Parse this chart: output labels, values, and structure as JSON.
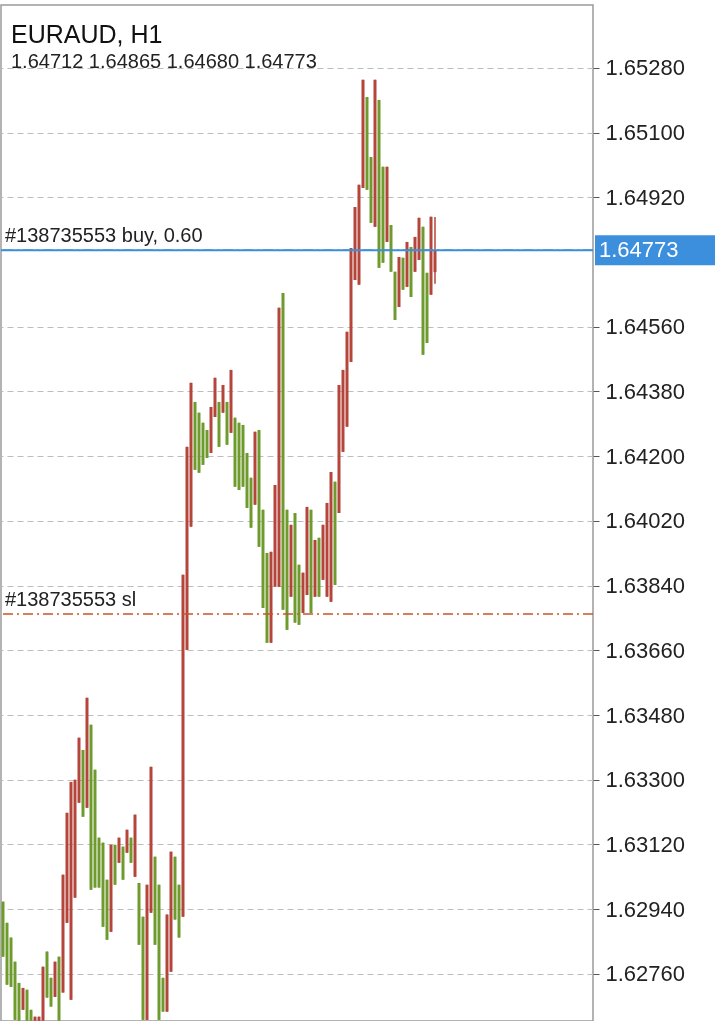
{
  "chart_data": {
    "type": "candlestick",
    "title": "EURAUD, H1",
    "subtitle": "1.64712 1.64865 1.64680 1.64773",
    "categories": [
      null,
      null,
      null,
      null,
      null,
      null,
      null,
      null,
      null,
      null,
      null,
      null,
      null,
      null,
      null,
      null,
      null,
      null,
      null,
      null,
      null,
      null,
      null,
      null,
      null,
      null,
      null,
      null,
      null,
      null,
      null,
      null,
      null,
      null,
      null,
      null,
      null,
      null,
      null,
      null,
      null,
      null,
      null,
      null,
      null,
      null,
      null,
      null,
      null,
      null,
      null,
      null,
      null,
      null,
      null,
      null,
      null,
      null,
      null,
      null,
      null,
      null,
      null,
      null,
      null,
      null,
      null,
      null,
      null,
      null,
      null,
      null,
      null,
      null,
      null,
      null,
      null,
      null,
      null,
      null,
      null,
      null,
      null,
      null,
      null,
      null,
      null,
      null,
      null,
      null,
      null,
      null,
      null,
      null,
      null,
      null,
      null,
      null,
      null,
      null,
      null,
      null,
      null,
      null,
      null,
      null,
      null,
      null,
      null,
      null,
      null,
      null,
      null,
      null,
      null,
      null,
      null,
      null,
      null,
      null,
      null,
      null,
      null,
      null,
      null,
      null,
      null,
      null,
      null,
      null,
      null,
      null,
      null,
      null,
      null,
      null,
      null,
      null,
      null,
      null,
      null,
      null,
      null,
      null,
      null,
      null,
      null,
      null
    ],
    "ylim": [
      1.62629,
      1.65455
    ],
    "yticks": [
      {
        "value": 1.6528,
        "label": "1.65280"
      },
      {
        "value": 1.651,
        "label": "1.65100"
      },
      {
        "value": 1.6492,
        "label": "1.64920"
      },
      {
        "value": 1.6456,
        "label": "1.64560"
      },
      {
        "value": 1.6438,
        "label": "1.64380"
      },
      {
        "value": 1.642,
        "label": "1.64200"
      },
      {
        "value": 1.6402,
        "label": "1.64020"
      },
      {
        "value": 1.6384,
        "label": "1.63840"
      },
      {
        "value": 1.6366,
        "label": "1.63660"
      },
      {
        "value": 1.6348,
        "label": "1.63480"
      },
      {
        "value": 1.633,
        "label": "1.63300"
      },
      {
        "value": 1.6312,
        "label": "1.63120"
      },
      {
        "value": 1.6294,
        "label": "1.62940"
      },
      {
        "value": 1.6276,
        "label": "1.62760"
      }
    ],
    "tick_labels": "y",
    "grid": "y",
    "colors": [
      "#6f9a2d",
      "#6f9a2d",
      "#6f9a2d",
      "#6f9a2d",
      "#6f9a2d",
      "#b5453a",
      "#6f9a2d",
      "#6f9a2d",
      "#b5453a",
      "#b5453a",
      "#b5453a",
      "#6f9a2d",
      "#6f9a2d",
      "#b5453a",
      "#6f9a2d",
      "#b5453a",
      "#b5453a",
      "#b5453a",
      "#b5453a",
      "#b5453a",
      "#6f9a2d",
      "#b5453a",
      "#6f9a2d",
      "#6f9a2d",
      "#6f9a2d",
      "#6f9a2d",
      "#6f9a2d",
      "#b5453a",
      "#6f9a2d",
      "#b5453a",
      "#6f9a2d",
      "#b5453a",
      "#6f9a2d",
      "#b5453a",
      "#6f9a2d",
      "#6f9a2d",
      "#b5453a",
      "#b5453a",
      "#6f9a2d",
      "#6f9a2d",
      "#6f9a2d",
      "#b5453a",
      "#b5453a",
      "#6f9a2d",
      "#6f9a2d",
      "#b5453a",
      "#b5453a",
      "#b5453a",
      "#6f9a2d",
      "#6f9a2d",
      "#6f9a2d",
      "#6f9a2d",
      "#b5453a",
      "#b5453a",
      "#6f9a2d",
      "#b5453a",
      "#6f9a2d",
      "#b5453a",
      "#6f9a2d",
      "#6f9a2d",
      "#6f9a2d",
      "#6f9a2d",
      "#6f9a2d",
      "#b5453a",
      "#6f9a2d",
      "#6f9a2d",
      "#6f9a2d",
      "#b5453a",
      "#b5453a",
      "#b5453a",
      "#6f9a2d",
      "#6f9a2d",
      "#b5453a",
      "#6f9a2d",
      "#6f9a2d",
      "#b5453a",
      "#b5453a",
      "#6f9a2d",
      "#b5453a",
      "#6f9a2d",
      "#b5453a",
      "#b5453a",
      "#b5453a",
      "#6f9a2d",
      "#b5453a",
      "#b5453a",
      "#b5453a",
      "#b5453a",
      "#b5453a",
      "#b5453a",
      "#b5453a",
      "#6f9a2d",
      "#6f9a2d",
      "#b5453a",
      "#6f9a2d",
      "#6f9a2d",
      "#b5453a",
      "#6f9a2d",
      "#6f9a2d",
      "#b5453a",
      "#6f9a2d",
      "#b5453a",
      "#6f9a2d",
      "#b5453a",
      "#b5453a",
      "#6f9a2d",
      "#6f9a2d",
      "#b5453a",
      "#b5453a",
      null,
      null,
      null,
      null,
      null,
      null,
      null,
      null,
      null,
      null,
      null,
      null,
      null,
      null,
      null,
      null,
      null,
      null,
      null,
      null,
      null,
      null,
      null,
      null,
      null,
      null,
      null,
      null,
      null,
      null,
      null,
      null,
      null,
      null,
      null,
      null,
      null,
      null,
      null
    ],
    "ref_lines": [
      {
        "axis": "y",
        "value": 1.64773,
        "label": "#138735553 buy, 0.60",
        "color": "#2a7a78",
        "line_style": "dashed"
      },
      {
        "axis": "y",
        "value": 1.64773,
        "label": "1.64773",
        "color": "#3b8fdc",
        "line_style": "solid"
      },
      {
        "axis": "y",
        "value": 1.63761,
        "label": "#138735553 sl",
        "color": "#c8552a",
        "line_style": "dashed"
      }
    ],
    "ohlc": [
      [
        1.62961,
        1.62961,
        1.62808,
        1.62808
      ],
      [
        1.62902,
        1.62902,
        1.6273,
        1.6273
      ],
      [
        1.62861,
        1.62861,
        1.62724,
        1.62724
      ],
      [
        1.62794,
        1.62794,
        1.62632,
        1.62632
      ],
      [
        1.62735,
        1.62735,
        1.6263,
        1.6263
      ],
      [
        1.6266,
        1.62721,
        1.6266,
        1.62721
      ],
      [
        1.62716,
        1.62716,
        1.6263,
        1.6263
      ],
      [
        1.6266,
        1.6266,
        1.6263,
        1.6263
      ],
      [
        1.6263,
        1.62641,
        1.6263,
        1.62641
      ],
      [
        1.6263,
        1.62641,
        1.6263,
        1.62641
      ],
      [
        1.6263,
        1.6278,
        1.6263,
        1.6278
      ],
      [
        1.62822,
        1.62822,
        1.62694,
        1.62694
      ],
      [
        1.62749,
        1.62749,
        1.62669,
        1.62669
      ],
      [
        1.62696,
        1.62794,
        1.62696,
        1.62794
      ],
      [
        1.62808,
        1.62808,
        1.6263,
        1.6263
      ],
      [
        1.62708,
        1.63036,
        1.62708,
        1.63036
      ],
      [
        1.62902,
        1.63208,
        1.62902,
        1.63208
      ],
      [
        1.62688,
        1.63294,
        1.62688,
        1.63294
      ],
      [
        1.62972,
        1.633,
        1.62972,
        1.633
      ],
      [
        1.63236,
        1.63417,
        1.63236,
        1.63417
      ],
      [
        1.63383,
        1.63383,
        1.63197,
        1.63197
      ],
      [
        1.63222,
        1.63528,
        1.63222,
        1.63528
      ],
      [
        1.63453,
        1.63453,
        1.62994,
        1.62994
      ],
      [
        1.63328,
        1.63328,
        1.63,
        1.63
      ],
      [
        1.63139,
        1.63139,
        1.63,
        1.63
      ],
      [
        1.63125,
        1.63125,
        1.62891,
        1.62891
      ],
      [
        1.63022,
        1.63022,
        1.62855,
        1.62855
      ],
      [
        1.62877,
        1.63119,
        1.62877,
        1.63119
      ],
      [
        1.63119,
        1.63119,
        1.63008,
        1.63008
      ],
      [
        1.63069,
        1.63139,
        1.63069,
        1.63139
      ],
      [
        1.63114,
        1.63114,
        1.63022,
        1.63022
      ],
      [
        1.63097,
        1.63161,
        1.63097,
        1.63161
      ],
      [
        1.63139,
        1.63139,
        1.63069,
        1.63069
      ],
      [
        1.6303,
        1.63203,
        1.6303,
        1.63203
      ],
      [
        1.63013,
        1.63013,
        1.62841,
        1.62841
      ],
      [
        1.62919,
        1.62919,
        1.62632,
        1.62632
      ],
      [
        1.62632,
        1.63008,
        1.62632,
        1.63008
      ],
      [
        1.6293,
        1.63336,
        1.6293,
        1.63336
      ],
      [
        1.63086,
        1.63086,
        1.62841,
        1.62841
      ],
      [
        1.63008,
        1.63008,
        1.62632,
        1.62632
      ],
      [
        1.62749,
        1.62749,
        1.62655,
        1.62655
      ],
      [
        1.62655,
        1.62925,
        1.62655,
        1.62925
      ],
      [
        1.62766,
        1.631,
        1.62766,
        1.631
      ],
      [
        1.63086,
        1.63086,
        1.62911,
        1.62911
      ],
      [
        1.63008,
        1.63008,
        1.62861,
        1.62861
      ],
      [
        1.62919,
        1.6387,
        1.62919,
        1.6387
      ],
      [
        1.63661,
        1.64226,
        1.63661,
        1.64226
      ],
      [
        1.64004,
        1.64404,
        1.64004,
        1.64404
      ],
      [
        1.64351,
        1.64351,
        1.64162,
        1.64162
      ],
      [
        1.64321,
        1.64321,
        1.64154,
        1.64154
      ],
      [
        1.64293,
        1.64293,
        1.64176,
        1.64176
      ],
      [
        1.64273,
        1.64273,
        1.64195,
        1.64195
      ],
      [
        1.64209,
        1.64337,
        1.64209,
        1.64337
      ],
      [
        1.64309,
        1.64418,
        1.64309,
        1.64418
      ],
      [
        1.64351,
        1.64351,
        1.64226,
        1.64226
      ],
      [
        1.64321,
        1.64398,
        1.64321,
        1.64398
      ],
      [
        1.64351,
        1.64351,
        1.64232,
        1.64232
      ],
      [
        1.64265,
        1.6444,
        1.64265,
        1.6444
      ],
      [
        1.64307,
        1.64307,
        1.64115,
        1.64115
      ],
      [
        1.64293,
        1.64293,
        1.64106,
        1.64106
      ],
      [
        1.64287,
        1.64287,
        1.64115,
        1.64115
      ],
      [
        1.64209,
        1.64209,
        1.64056,
        1.64056
      ],
      [
        1.6414,
        1.6414,
        1.64001,
        1.64001
      ],
      [
        1.64065,
        1.64268,
        1.64065,
        1.64268
      ],
      [
        1.64273,
        1.64273,
        1.63948,
        1.63948
      ],
      [
        1.64051,
        1.64051,
        1.63778,
        1.63778
      ],
      [
        1.63931,
        1.63931,
        1.63681,
        1.63681
      ],
      [
        1.63681,
        1.63934,
        1.63681,
        1.63934
      ],
      [
        1.63837,
        1.6412,
        1.63837,
        1.6412
      ],
      [
        1.63837,
        1.64613,
        1.63837,
        1.64613
      ],
      [
        1.64654,
        1.64654,
        1.63773,
        1.63773
      ],
      [
        1.64051,
        1.64051,
        1.63717,
        1.63717
      ],
      [
        1.63809,
        1.64009,
        1.63809,
        1.64009
      ],
      [
        1.64042,
        1.64042,
        1.63737,
        1.63737
      ],
      [
        1.63898,
        1.63898,
        1.63731,
        1.63731
      ],
      [
        1.63764,
        1.63876,
        1.63764,
        1.63876
      ],
      [
        1.63814,
        1.64059,
        1.63814,
        1.64059
      ],
      [
        1.64051,
        1.64051,
        1.63764,
        1.63764
      ],
      [
        1.63809,
        1.63967,
        1.63809,
        1.63967
      ],
      [
        1.63973,
        1.63973,
        1.63809,
        1.63809
      ],
      [
        1.63856,
        1.64009,
        1.63856,
        1.64009
      ],
      [
        1.63809,
        1.6407,
        1.63809,
        1.6407
      ],
      [
        1.63795,
        1.64156,
        1.63795,
        1.64156
      ],
      [
        1.64129,
        1.64129,
        1.63842,
        1.63842
      ],
      [
        1.64042,
        1.64398,
        1.64042,
        1.64398
      ],
      [
        1.64212,
        1.6444,
        1.64212,
        1.6444
      ],
      [
        1.64282,
        1.64546,
        1.64282,
        1.64546
      ],
      [
        1.64462,
        1.64779,
        1.64462,
        1.64779
      ],
      [
        1.6469,
        1.64893,
        1.6469,
        1.64893
      ],
      [
        1.64677,
        1.64955,
        1.64677,
        1.64955
      ],
      [
        1.64946,
        1.65247,
        1.64946,
        1.65247
      ],
      [
        1.65199,
        1.65199,
        1.64941,
        1.64941
      ],
      [
        1.65032,
        1.65032,
        1.64849,
        1.64849
      ],
      [
        1.64838,
        1.65247,
        1.64838,
        1.65247
      ],
      [
        1.65191,
        1.65191,
        1.64724,
        1.64724
      ],
      [
        1.65005,
        1.65005,
        1.64738,
        1.64738
      ],
      [
        1.64796,
        1.65005,
        1.64796,
        1.65005
      ],
      [
        1.64843,
        1.64843,
        1.64713,
        1.64713
      ],
      [
        1.64713,
        1.64713,
        1.64579,
        1.64579
      ],
      [
        1.64615,
        1.64754,
        1.64615,
        1.64754
      ],
      [
        1.64752,
        1.64752,
        1.64663,
        1.64663
      ],
      [
        1.64671,
        1.64796,
        1.64671,
        1.64796
      ],
      [
        1.64782,
        1.64782,
        1.64643,
        1.64643
      ],
      [
        1.64713,
        1.6481,
        1.64713,
        1.6481
      ],
      [
        1.64746,
        1.64863,
        1.64746,
        1.64863
      ],
      [
        1.64838,
        1.64838,
        1.64482,
        1.64482
      ],
      [
        1.6471,
        1.6471,
        1.64515,
        1.64515
      ],
      [
        1.64649,
        1.64866,
        1.64649,
        1.64866
      ],
      [
        1.64712,
        1.64865,
        1.6468,
        1.64773
      ],
      null,
      null,
      null,
      null,
      null,
      null,
      null,
      null,
      null,
      null,
      null,
      null,
      null,
      null,
      null,
      null,
      null,
      null,
      null,
      null,
      null,
      null,
      null,
      null,
      null,
      null,
      null,
      null,
      null,
      null,
      null,
      null,
      null,
      null,
      null,
      null,
      null,
      null,
      null
    ]
  }
}
